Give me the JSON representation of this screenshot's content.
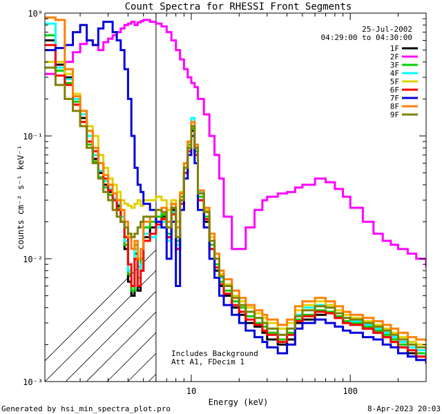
{
  "chart_data": {
    "type": "line",
    "title": "Count Spectra for RHESSI Front Segments",
    "xlabel": "Energy (keV)",
    "ylabel": "counts cm⁻² s⁻¹ keV⁻¹",
    "xscale": "log",
    "yscale": "log",
    "xlim": [
      1.2,
      300
    ],
    "ylim": [
      0.001,
      1
    ],
    "x_ticks": [
      {
        "value": 10,
        "label": "10"
      },
      {
        "value": 100,
        "label": "100"
      }
    ],
    "y_ticks": [
      {
        "value": 1,
        "label": "10⁰"
      },
      {
        "value": 0.1,
        "label": "10⁻¹"
      },
      {
        "value": 0.01,
        "label": "10⁻²"
      },
      {
        "value": 0.001,
        "label": "10⁻³"
      }
    ],
    "vline_energy": 6,
    "date": "25-Jul-2002",
    "time_range": "04:29:00 to 04:30:00",
    "annotation_lines": [
      "Includes Background",
      "Att A1, FDecim 1"
    ],
    "footer_left": "Generated by hsi_min_spectra_plot.pro",
    "footer_right": "8-Apr-2023 20:03",
    "series": [
      {
        "name": "1F",
        "color": "#000000",
        "x": [
          1.2,
          1.4,
          1.6,
          1.8,
          2.0,
          2.2,
          2.4,
          2.6,
          2.8,
          3.0,
          3.2,
          3.4,
          3.6,
          3.8,
          4.0,
          4.2,
          4.4,
          4.6,
          4.8,
          5.0,
          5.5,
          6.0,
          6.5,
          7.0,
          7.5,
          8.0,
          8.5,
          9.0,
          9.5,
          10,
          10.5,
          11,
          12,
          13,
          14,
          15,
          16,
          18,
          20,
          22,
          25,
          28,
          30,
          35,
          40,
          45,
          50,
          60,
          70,
          80,
          90,
          100,
          120,
          140,
          160,
          180,
          200,
          230,
          260,
          300
        ],
        "y": [
          0.6,
          0.38,
          0.3,
          0.18,
          0.14,
          0.09,
          0.065,
          0.05,
          0.04,
          0.035,
          0.03,
          0.027,
          0.02,
          0.012,
          0.0065,
          0.005,
          0.011,
          0.0055,
          0.008,
          0.015,
          0.018,
          0.02,
          0.022,
          0.015,
          0.025,
          0.012,
          0.03,
          0.05,
          0.08,
          0.11,
          0.07,
          0.03,
          0.02,
          0.012,
          0.008,
          0.006,
          0.005,
          0.004,
          0.0035,
          0.003,
          0.0028,
          0.0025,
          0.0022,
          0.002,
          0.0022,
          0.003,
          0.0032,
          0.0035,
          0.0036,
          0.0033,
          0.003,
          0.0029,
          0.0027,
          0.0025,
          0.0023,
          0.0021,
          0.0019,
          0.0017,
          0.0016,
          0.0015
        ]
      },
      {
        "name": "2F",
        "color": "#ff00ff",
        "x": [
          1.2,
          1.4,
          1.6,
          1.8,
          2.0,
          2.2,
          2.4,
          2.6,
          2.8,
          3.0,
          3.2,
          3.4,
          3.6,
          3.8,
          4.0,
          4.2,
          4.4,
          4.6,
          4.8,
          5.0,
          5.5,
          6.0,
          6.5,
          7.0,
          7.5,
          8.0,
          8.5,
          9.0,
          9.5,
          10,
          10.5,
          11,
          12,
          13,
          14,
          15,
          16,
          18,
          20,
          22,
          25,
          28,
          30,
          35,
          40,
          45,
          50,
          60,
          70,
          80,
          90,
          100,
          120,
          140,
          160,
          180,
          200,
          230,
          260,
          300
        ],
        "y": [
          0.32,
          0.36,
          0.4,
          0.48,
          0.56,
          0.6,
          0.55,
          0.5,
          0.58,
          0.62,
          0.66,
          0.7,
          0.75,
          0.8,
          0.82,
          0.85,
          0.8,
          0.84,
          0.86,
          0.88,
          0.85,
          0.82,
          0.78,
          0.7,
          0.6,
          0.5,
          0.42,
          0.35,
          0.3,
          0.27,
          0.25,
          0.2,
          0.15,
          0.1,
          0.07,
          0.045,
          0.022,
          0.012,
          0.012,
          0.018,
          0.025,
          0.03,
          0.032,
          0.034,
          0.035,
          0.038,
          0.04,
          0.045,
          0.042,
          0.037,
          0.032,
          0.026,
          0.02,
          0.016,
          0.014,
          0.013,
          0.012,
          0.011,
          0.01,
          0.0085
        ]
      },
      {
        "name": "3F",
        "color": "#00d000",
        "x": [
          1.2,
          1.4,
          1.6,
          1.8,
          2.0,
          2.2,
          2.4,
          2.6,
          2.8,
          3.0,
          3.2,
          3.4,
          3.6,
          3.8,
          4.0,
          4.2,
          4.4,
          4.6,
          4.8,
          5.0,
          5.5,
          6.0,
          6.5,
          7.0,
          7.5,
          8.0,
          8.5,
          9.0,
          9.5,
          10,
          10.5,
          11,
          12,
          13,
          14,
          15,
          16,
          18,
          20,
          22,
          25,
          28,
          30,
          35,
          40,
          45,
          50,
          60,
          70,
          80,
          90,
          100,
          120,
          140,
          160,
          180,
          200,
          230,
          260,
          300
        ],
        "y": [
          0.66,
          0.34,
          0.27,
          0.19,
          0.13,
          0.085,
          0.062,
          0.046,
          0.038,
          0.033,
          0.03,
          0.026,
          0.02,
          0.013,
          0.0075,
          0.0055,
          0.013,
          0.007,
          0.01,
          0.018,
          0.02,
          0.022,
          0.023,
          0.016,
          0.026,
          0.014,
          0.032,
          0.055,
          0.085,
          0.115,
          0.075,
          0.032,
          0.022,
          0.013,
          0.009,
          0.0065,
          0.0055,
          0.0045,
          0.004,
          0.0034,
          0.003,
          0.0028,
          0.0025,
          0.0022,
          0.0025,
          0.0032,
          0.0035,
          0.0038,
          0.0037,
          0.0034,
          0.0031,
          0.003,
          0.0028,
          0.0026,
          0.0024,
          0.0022,
          0.002,
          0.0018,
          0.0017,
          0.0016
        ]
      },
      {
        "name": "4F",
        "color": "#00ffff",
        "x": [
          1.2,
          1.4,
          1.6,
          1.8,
          2.0,
          2.2,
          2.4,
          2.6,
          2.8,
          3.0,
          3.2,
          3.4,
          3.6,
          3.8,
          4.0,
          4.2,
          4.4,
          4.6,
          4.8,
          5.0,
          5.5,
          6.0,
          6.5,
          7.0,
          7.5,
          8.0,
          8.5,
          9.0,
          9.5,
          10,
          10.5,
          11,
          12,
          13,
          14,
          15,
          16,
          18,
          20,
          22,
          25,
          28,
          30,
          35,
          40,
          45,
          50,
          60,
          70,
          80,
          90,
          100,
          120,
          140,
          160,
          180,
          200,
          230,
          260,
          300
        ],
        "y": [
          0.82,
          0.36,
          0.29,
          0.2,
          0.15,
          0.1,
          0.07,
          0.052,
          0.043,
          0.037,
          0.031,
          0.028,
          0.022,
          0.014,
          0.008,
          0.006,
          0.012,
          0.006,
          0.009,
          0.016,
          0.015,
          0.018,
          0.02,
          0.014,
          0.024,
          0.013,
          0.03,
          0.06,
          0.09,
          0.14,
          0.08,
          0.035,
          0.024,
          0.014,
          0.01,
          0.007,
          0.006,
          0.005,
          0.0042,
          0.0037,
          0.0033,
          0.003,
          0.0027,
          0.0024,
          0.0027,
          0.0035,
          0.004,
          0.0042,
          0.004,
          0.0036,
          0.0033,
          0.0031,
          0.0029,
          0.0027,
          0.0025,
          0.0023,
          0.0021,
          0.0019,
          0.0018,
          0.0017
        ]
      },
      {
        "name": "5F",
        "color": "#e0d000",
        "x": [
          1.2,
          1.4,
          1.6,
          1.8,
          2.0,
          2.2,
          2.4,
          2.6,
          2.8,
          3.0,
          3.2,
          3.4,
          3.6,
          3.8,
          4.0,
          4.2,
          4.4,
          4.6,
          4.8,
          5.0,
          5.5,
          6.0,
          6.5,
          7.0,
          7.5,
          8.0,
          8.5,
          9.0,
          9.5,
          10,
          10.5,
          11,
          12,
          13,
          14,
          15,
          16,
          18,
          20,
          22,
          25,
          28,
          30,
          35,
          40,
          45,
          50,
          60,
          70,
          80,
          90,
          100,
          120,
          140,
          160,
          180,
          200,
          230,
          260,
          300
        ],
        "y": [
          0.4,
          0.4,
          0.32,
          0.22,
          0.16,
          0.12,
          0.1,
          0.07,
          0.055,
          0.045,
          0.04,
          0.035,
          0.03,
          0.028,
          0.027,
          0.026,
          0.028,
          0.03,
          0.027,
          0.03,
          0.03,
          0.032,
          0.03,
          0.025,
          0.03,
          0.02,
          0.035,
          0.06,
          0.09,
          0.12,
          0.08,
          0.036,
          0.025,
          0.015,
          0.01,
          0.0075,
          0.0062,
          0.005,
          0.0045,
          0.004,
          0.0036,
          0.0033,
          0.003,
          0.0027,
          0.003,
          0.0038,
          0.0042,
          0.0045,
          0.0042,
          0.0038,
          0.0035,
          0.0033,
          0.0031,
          0.0029,
          0.0027,
          0.0025,
          0.0023,
          0.0021,
          0.002,
          0.0019
        ]
      },
      {
        "name": "6F",
        "color": "#ff0000",
        "x": [
          1.2,
          1.4,
          1.6,
          1.8,
          2.0,
          2.2,
          2.4,
          2.6,
          2.8,
          3.0,
          3.2,
          3.4,
          3.6,
          3.8,
          4.0,
          4.2,
          4.4,
          4.6,
          4.8,
          5.0,
          5.5,
          6.0,
          6.5,
          7.0,
          7.5,
          8.0,
          8.5,
          9.0,
          9.5,
          10,
          10.5,
          11,
          12,
          13,
          14,
          15,
          16,
          18,
          20,
          22,
          25,
          28,
          30,
          35,
          40,
          45,
          50,
          60,
          70,
          80,
          90,
          100,
          120,
          140,
          160,
          180,
          200,
          230,
          260,
          300
        ],
        "y": [
          0.55,
          0.31,
          0.26,
          0.18,
          0.13,
          0.09,
          0.075,
          0.06,
          0.045,
          0.036,
          0.03,
          0.025,
          0.02,
          0.015,
          0.009,
          0.006,
          0.01,
          0.006,
          0.008,
          0.014,
          0.016,
          0.019,
          0.021,
          0.015,
          0.023,
          0.012,
          0.028,
          0.05,
          0.075,
          0.1,
          0.07,
          0.03,
          0.021,
          0.012,
          0.0085,
          0.0062,
          0.0052,
          0.0042,
          0.0037,
          0.0032,
          0.0029,
          0.0026,
          0.0024,
          0.0021,
          0.0024,
          0.0031,
          0.0034,
          0.0037,
          0.0036,
          0.0033,
          0.003,
          0.0029,
          0.0027,
          0.0025,
          0.0023,
          0.0021,
          0.0019,
          0.0018,
          0.0016,
          0.0015
        ]
      },
      {
        "name": "7F",
        "color": "#0000dd",
        "x": [
          1.2,
          1.4,
          1.6,
          1.8,
          2.0,
          2.2,
          2.4,
          2.6,
          2.8,
          3.0,
          3.2,
          3.4,
          3.6,
          3.8,
          4.0,
          4.2,
          4.4,
          4.6,
          4.8,
          5.0,
          5.5,
          6.0,
          6.5,
          7.0,
          7.5,
          8.0,
          8.5,
          9.0,
          9.5,
          10,
          10.5,
          11,
          12,
          13,
          14,
          15,
          16,
          18,
          20,
          22,
          25,
          28,
          30,
          35,
          40,
          45,
          50,
          60,
          70,
          80,
          90,
          100,
          120,
          140,
          160,
          180,
          200,
          230,
          260,
          300
        ],
        "y": [
          0.5,
          0.52,
          0.55,
          0.7,
          0.8,
          0.6,
          0.55,
          0.75,
          0.85,
          0.85,
          0.7,
          0.6,
          0.5,
          0.35,
          0.2,
          0.1,
          0.055,
          0.04,
          0.035,
          0.028,
          0.025,
          0.02,
          0.018,
          0.01,
          0.02,
          0.006,
          0.025,
          0.045,
          0.07,
          0.1,
          0.06,
          0.025,
          0.018,
          0.01,
          0.007,
          0.005,
          0.0042,
          0.0035,
          0.003,
          0.0026,
          0.0023,
          0.0021,
          0.0019,
          0.0017,
          0.002,
          0.0027,
          0.003,
          0.0032,
          0.003,
          0.0028,
          0.0026,
          0.0025,
          0.0023,
          0.0022,
          0.002,
          0.0019,
          0.0017,
          0.0016,
          0.0015,
          0.0014
        ]
      },
      {
        "name": "8F",
        "color": "#ff8000",
        "x": [
          1.2,
          1.4,
          1.6,
          1.8,
          2.0,
          2.2,
          2.4,
          2.6,
          2.8,
          3.0,
          3.2,
          3.4,
          3.6,
          3.8,
          4.0,
          4.2,
          4.4,
          4.6,
          4.8,
          5.0,
          5.5,
          6.0,
          6.5,
          7.0,
          7.5,
          8.0,
          8.5,
          9.0,
          9.5,
          10,
          10.5,
          11,
          12,
          13,
          14,
          15,
          16,
          18,
          20,
          22,
          25,
          28,
          30,
          35,
          40,
          45,
          50,
          60,
          70,
          80,
          90,
          100,
          120,
          140,
          160,
          180,
          200,
          230,
          260,
          300
        ],
        "y": [
          0.92,
          0.88,
          0.35,
          0.21,
          0.16,
          0.11,
          0.08,
          0.06,
          0.048,
          0.04,
          0.034,
          0.03,
          0.025,
          0.02,
          0.015,
          0.012,
          0.014,
          0.01,
          0.012,
          0.02,
          0.022,
          0.025,
          0.026,
          0.02,
          0.028,
          0.018,
          0.034,
          0.06,
          0.09,
          0.13,
          0.085,
          0.036,
          0.026,
          0.016,
          0.011,
          0.008,
          0.0068,
          0.0055,
          0.0048,
          0.0042,
          0.0038,
          0.0035,
          0.0032,
          0.0029,
          0.0032,
          0.0041,
          0.0045,
          0.0048,
          0.0045,
          0.0041,
          0.0037,
          0.0035,
          0.0033,
          0.0031,
          0.0029,
          0.0027,
          0.0025,
          0.0023,
          0.0022,
          0.0021
        ]
      },
      {
        "name": "9F",
        "color": "#808000",
        "x": [
          1.2,
          1.4,
          1.6,
          1.8,
          2.0,
          2.2,
          2.4,
          2.6,
          2.8,
          3.0,
          3.2,
          3.4,
          3.6,
          3.8,
          4.0,
          4.2,
          4.4,
          4.6,
          4.8,
          5.0,
          5.5,
          6.0,
          6.5,
          7.0,
          7.5,
          8.0,
          8.5,
          9.0,
          9.5,
          10,
          10.5,
          11,
          12,
          13,
          14,
          15,
          16,
          18,
          20,
          22,
          25,
          28,
          30,
          35,
          40,
          45,
          50,
          60,
          70,
          80,
          90,
          100,
          120,
          140,
          160,
          180,
          200,
          230,
          260,
          300
        ],
        "y": [
          0.36,
          0.26,
          0.2,
          0.16,
          0.12,
          0.08,
          0.06,
          0.045,
          0.035,
          0.03,
          0.025,
          0.022,
          0.02,
          0.018,
          0.016,
          0.015,
          0.016,
          0.018,
          0.02,
          0.022,
          0.022,
          0.025,
          0.024,
          0.018,
          0.026,
          0.015,
          0.03,
          0.055,
          0.08,
          0.12,
          0.08,
          0.034,
          0.024,
          0.014,
          0.01,
          0.0072,
          0.006,
          0.0048,
          0.0042,
          0.0037,
          0.0033,
          0.003,
          0.0027,
          0.0024,
          0.0027,
          0.0034,
          0.0038,
          0.0041,
          0.004,
          0.0036,
          0.0033,
          0.0032,
          0.003,
          0.0028,
          0.0026,
          0.0024,
          0.0022,
          0.002,
          0.0019,
          0.0018
        ]
      }
    ]
  }
}
